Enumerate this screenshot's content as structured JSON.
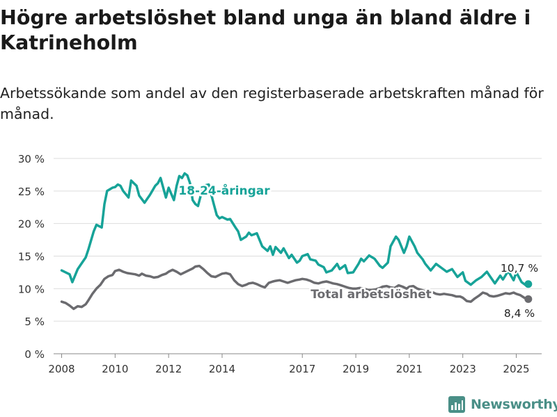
{
  "title": "Högre arbetslöshet bland unga än bland äldre i Katrineholm",
  "subtitle": "Arbetssökande som andel av den registerbaserade arbetskraften månad för månad.",
  "brand": {
    "name": "Newsworthy",
    "icon": "bar-chart-logo-icon",
    "color": "#4a8f87"
  },
  "chart_data": {
    "type": "line",
    "title": "Högre arbetslöshet bland unga än bland äldre i Katrineholm",
    "subtitle": "Arbetssökande som andel av den registerbaserade arbetskraften månad för månad.",
    "xlabel": "",
    "ylabel": "",
    "xlim": [
      2007.7,
      2025.95
    ],
    "ylim": [
      0,
      30
    ],
    "x_ticks": [
      2008,
      2010,
      2012,
      2014,
      2017,
      2019,
      2021,
      2023,
      2025
    ],
    "x_tick_labels": [
      "2008",
      "2010",
      "2012",
      "2014",
      "2017",
      "2019",
      "2021",
      "2023",
      "2025"
    ],
    "y_ticks": [
      0,
      5,
      10,
      15,
      20,
      25,
      30
    ],
    "y_tick_labels": [
      "0 %",
      "5 %",
      "10 %",
      "15 %",
      "20 %",
      "25 %",
      "30 %"
    ],
    "grid": "horizontal",
    "series": [
      {
        "name": "18-24-åringar",
        "color": "#17a398",
        "end_label": "10,7 %",
        "x": [
          2008.0,
          2008.3,
          2008.4,
          2008.6,
          2008.9,
          2009.0,
          2009.2,
          2009.3,
          2009.5,
          2009.6,
          2009.7,
          2009.9,
          2010.0,
          2010.1,
          2010.2,
          2010.3,
          2010.5,
          2010.6,
          2010.7,
          2010.8,
          2010.9,
          2011.1,
          2011.2,
          2011.3,
          2011.5,
          2011.6,
          2011.7,
          2011.9,
          2012.0,
          2012.2,
          2012.3,
          2012.4,
          2012.5,
          2012.6,
          2012.7,
          2012.8,
          2012.9,
          2013.0,
          2013.1,
          2013.2,
          2013.3,
          2013.5,
          2013.6,
          2013.7,
          2013.8,
          2013.9,
          2014.0,
          2014.2,
          2014.3,
          2014.5,
          2014.6,
          2014.7,
          2014.9,
          2015.0,
          2015.1,
          2015.3,
          2015.5,
          2015.7,
          2015.8,
          2015.9,
          2016.0,
          2016.2,
          2016.3,
          2016.5,
          2016.6,
          2016.8,
          2016.9,
          2017.0,
          2017.2,
          2017.3,
          2017.5,
          2017.6,
          2017.8,
          2017.9,
          2018.1,
          2018.3,
          2018.4,
          2018.6,
          2018.7,
          2018.9,
          2019.1,
          2019.2,
          2019.3,
          2019.5,
          2019.7,
          2019.9,
          2020.0,
          2020.2,
          2020.3,
          2020.5,
          2020.6,
          2020.8,
          2020.9,
          2021.0,
          2021.2,
          2021.3,
          2021.5,
          2021.6,
          2021.8,
          2022.0,
          2022.2,
          2022.4,
          2022.6,
          2022.8,
          2023.0,
          2023.1,
          2023.3,
          2023.5,
          2023.7,
          2023.9,
          2024.0,
          2024.2,
          2024.4,
          2024.5,
          2024.7,
          2024.9,
          2025.0,
          2025.2,
          2025.4,
          2025.45
        ],
        "values": [
          12.8,
          12.2,
          11.0,
          13.0,
          14.8,
          16.0,
          18.8,
          19.8,
          19.4,
          23.0,
          25.0,
          25.5,
          25.6,
          26.0,
          25.8,
          25.0,
          24.0,
          26.6,
          26.2,
          25.8,
          24.3,
          23.2,
          23.8,
          24.4,
          25.8,
          26.2,
          27.0,
          24.0,
          25.5,
          23.6,
          25.8,
          27.3,
          27.0,
          27.7,
          27.4,
          26.2,
          23.6,
          23.0,
          22.7,
          24.3,
          25.8,
          26.0,
          24.4,
          22.8,
          21.3,
          20.8,
          21.0,
          20.6,
          20.7,
          19.4,
          18.8,
          17.5,
          18.0,
          18.6,
          18.2,
          18.5,
          16.5,
          15.8,
          16.5,
          15.2,
          16.4,
          15.5,
          16.2,
          14.7,
          15.2,
          14.0,
          14.3,
          15.0,
          15.3,
          14.5,
          14.3,
          13.7,
          13.3,
          12.5,
          12.8,
          13.8,
          13.0,
          13.6,
          12.4,
          12.5,
          13.8,
          14.6,
          14.2,
          15.1,
          14.6,
          13.5,
          13.2,
          14.0,
          16.5,
          18.0,
          17.5,
          15.5,
          16.5,
          18.0,
          16.5,
          15.5,
          14.5,
          13.8,
          12.8,
          13.8,
          13.2,
          12.6,
          13.0,
          11.8,
          12.5,
          11.2,
          10.6,
          11.3,
          11.8,
          12.6,
          12.0,
          10.8,
          12.0,
          11.4,
          12.7,
          11.3,
          12.5,
          11.0,
          10.4,
          10.7
        ]
      },
      {
        "name": "Total arbetslöshet",
        "color": "#6b6b6f",
        "end_label": "8,4 %",
        "x": [
          2008.0,
          2008.15,
          2008.3,
          2008.45,
          2008.6,
          2008.75,
          2008.9,
          2009.0,
          2009.15,
          2009.3,
          2009.45,
          2009.6,
          2009.75,
          2009.9,
          2010.0,
          2010.15,
          2010.3,
          2010.45,
          2010.6,
          2010.75,
          2010.9,
          2011.0,
          2011.15,
          2011.3,
          2011.45,
          2011.6,
          2011.75,
          2011.9,
          2012.0,
          2012.15,
          2012.3,
          2012.45,
          2012.6,
          2012.75,
          2012.9,
          2013.0,
          2013.15,
          2013.3,
          2013.45,
          2013.6,
          2013.75,
          2013.9,
          2014.0,
          2014.15,
          2014.3,
          2014.45,
          2014.6,
          2014.75,
          2014.9,
          2015.0,
          2015.15,
          2015.3,
          2015.45,
          2015.6,
          2015.75,
          2015.9,
          2016.0,
          2016.15,
          2016.3,
          2016.45,
          2016.6,
          2016.75,
          2016.9,
          2017.0,
          2017.15,
          2017.3,
          2017.45,
          2017.6,
          2017.75,
          2017.9,
          2018.0,
          2018.15,
          2018.3,
          2018.45,
          2018.6,
          2018.75,
          2018.9,
          2019.0,
          2019.15,
          2019.3,
          2019.45,
          2019.6,
          2019.75,
          2019.9,
          2020.0,
          2020.15,
          2020.3,
          2020.45,
          2020.6,
          2020.75,
          2020.9,
          2021.0,
          2021.15,
          2021.3,
          2021.45,
          2021.6,
          2021.75,
          2021.9,
          2022.0,
          2022.15,
          2022.3,
          2022.45,
          2022.6,
          2022.75,
          2022.9,
          2023.0,
          2023.15,
          2023.3,
          2023.45,
          2023.6,
          2023.75,
          2023.9,
          2024.0,
          2024.15,
          2024.3,
          2024.45,
          2024.6,
          2024.75,
          2024.9,
          2025.0,
          2025.15,
          2025.3,
          2025.45
        ],
        "values": [
          8.0,
          7.8,
          7.4,
          6.9,
          7.3,
          7.2,
          7.6,
          8.2,
          9.2,
          10.0,
          10.6,
          11.5,
          11.9,
          12.1,
          12.7,
          12.9,
          12.6,
          12.4,
          12.3,
          12.2,
          12.0,
          12.3,
          12.0,
          11.9,
          11.7,
          11.8,
          12.1,
          12.3,
          12.6,
          12.9,
          12.6,
          12.2,
          12.5,
          12.8,
          13.1,
          13.4,
          13.5,
          13.0,
          12.4,
          11.9,
          11.8,
          12.1,
          12.3,
          12.4,
          12.2,
          11.3,
          10.7,
          10.4,
          10.6,
          10.8,
          10.9,
          10.7,
          10.4,
          10.2,
          10.9,
          11.1,
          11.2,
          11.3,
          11.1,
          10.9,
          11.1,
          11.3,
          11.4,
          11.5,
          11.4,
          11.2,
          10.9,
          10.8,
          11.0,
          11.1,
          11.0,
          10.8,
          10.7,
          10.5,
          10.3,
          10.1,
          10.0,
          10.0,
          10.1,
          10.0,
          9.8,
          9.8,
          9.9,
          10.1,
          10.3,
          10.4,
          10.2,
          10.1,
          10.5,
          10.3,
          10.0,
          10.3,
          10.4,
          10.0,
          9.8,
          9.6,
          9.5,
          9.4,
          9.2,
          9.1,
          9.2,
          9.1,
          9.0,
          8.8,
          8.8,
          8.6,
          8.1,
          8.0,
          8.5,
          8.9,
          9.4,
          9.2,
          8.9,
          8.8,
          8.9,
          9.1,
          9.3,
          9.2,
          9.4,
          9.2,
          9.0,
          8.6,
          8.4
        ]
      }
    ]
  }
}
